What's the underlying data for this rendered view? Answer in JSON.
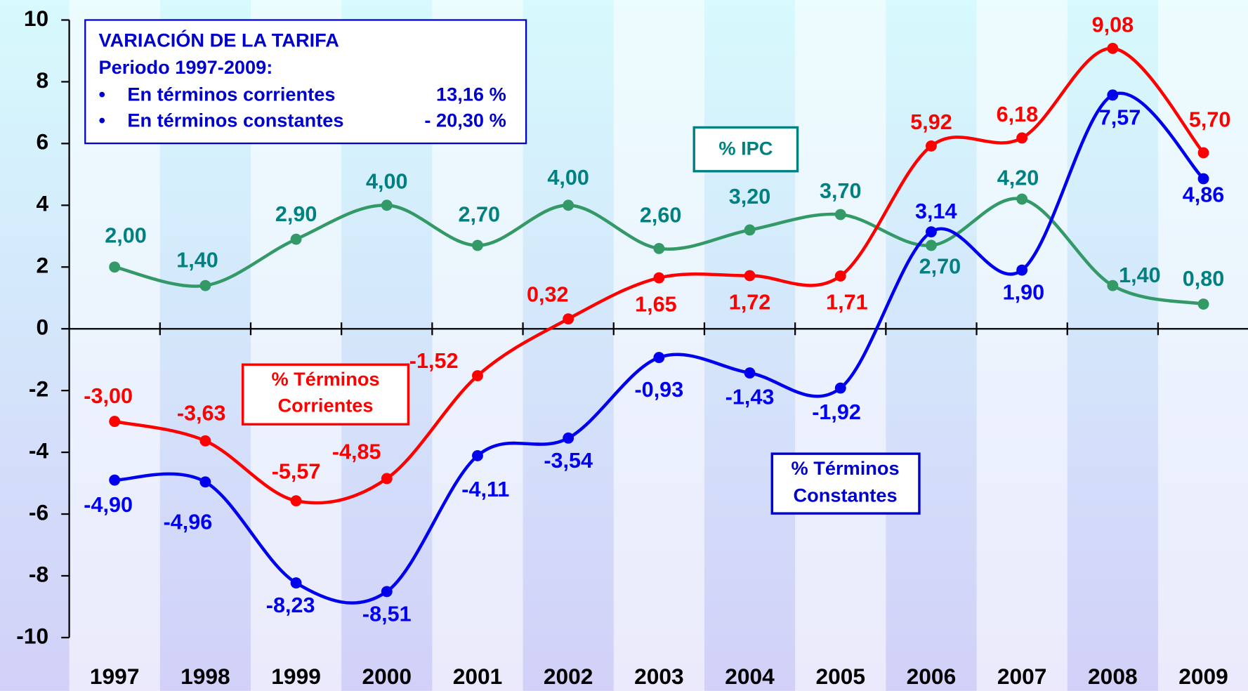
{
  "chart_data": {
    "type": "line",
    "categories": [
      "1997",
      "1998",
      "1999",
      "2000",
      "2001",
      "2002",
      "2003",
      "2004",
      "2005",
      "2006",
      "2007",
      "2008",
      "2009"
    ],
    "ylim": [
      -10,
      10
    ],
    "yticks": [
      -10,
      -8,
      -6,
      -4,
      -2,
      0,
      2,
      4,
      6,
      8,
      10
    ],
    "series": [
      {
        "name": "% IPC",
        "color": "#339966",
        "label_color": "#008080",
        "values": [
          2.0,
          1.4,
          2.9,
          4.0,
          2.7,
          4.0,
          2.6,
          3.2,
          3.7,
          2.7,
          4.2,
          1.4,
          0.8
        ],
        "value_labels": [
          "2,00",
          "1,40",
          "2,90",
          "4,00",
          "2,70",
          "4,00",
          "2,60",
          "3,20",
          "3,70",
          "2,70",
          "4,20",
          "1,40",
          "0,80"
        ]
      },
      {
        "name": [
          "% Términos",
          "Corrientes"
        ],
        "color": "#ff0000",
        "label_color": "#ff0000",
        "values": [
          -3.0,
          -3.63,
          -5.57,
          -4.85,
          -1.52,
          0.32,
          1.65,
          1.72,
          1.71,
          5.92,
          6.18,
          9.08,
          5.7
        ],
        "value_labels": [
          "-3,00",
          "-3,63",
          "-5,57",
          "-4,85",
          "-1,52",
          "0,32",
          "1,65",
          "1,72",
          "1,71",
          "5,92",
          "6,18",
          "9,08",
          "5,70"
        ]
      },
      {
        "name": [
          "% Términos",
          "Constantes"
        ],
        "color": "#0000ee",
        "label_color": "#0000ee",
        "values": [
          -4.9,
          -4.96,
          -8.23,
          -8.51,
          -4.11,
          -3.54,
          -0.93,
          -1.43,
          -1.92,
          3.14,
          1.9,
          7.57,
          4.86
        ],
        "value_labels": [
          "-4,90",
          "-4,96",
          "-8,23",
          "-8,51",
          "-4,11",
          "-3,54",
          "-0,93",
          "-1,43",
          "-1,92",
          "3,14",
          "1,90",
          "7,57",
          "4,86"
        ]
      }
    ],
    "annotation": {
      "title": "VARIACIÓN DE LA TARIFA",
      "subtitle": "Periodo 1997-2009:",
      "items": [
        {
          "label": "En términos corrientes",
          "value": "13,16 %"
        },
        {
          "label": "En términos constantes",
          "value": "- 20,30 %"
        }
      ]
    }
  }
}
